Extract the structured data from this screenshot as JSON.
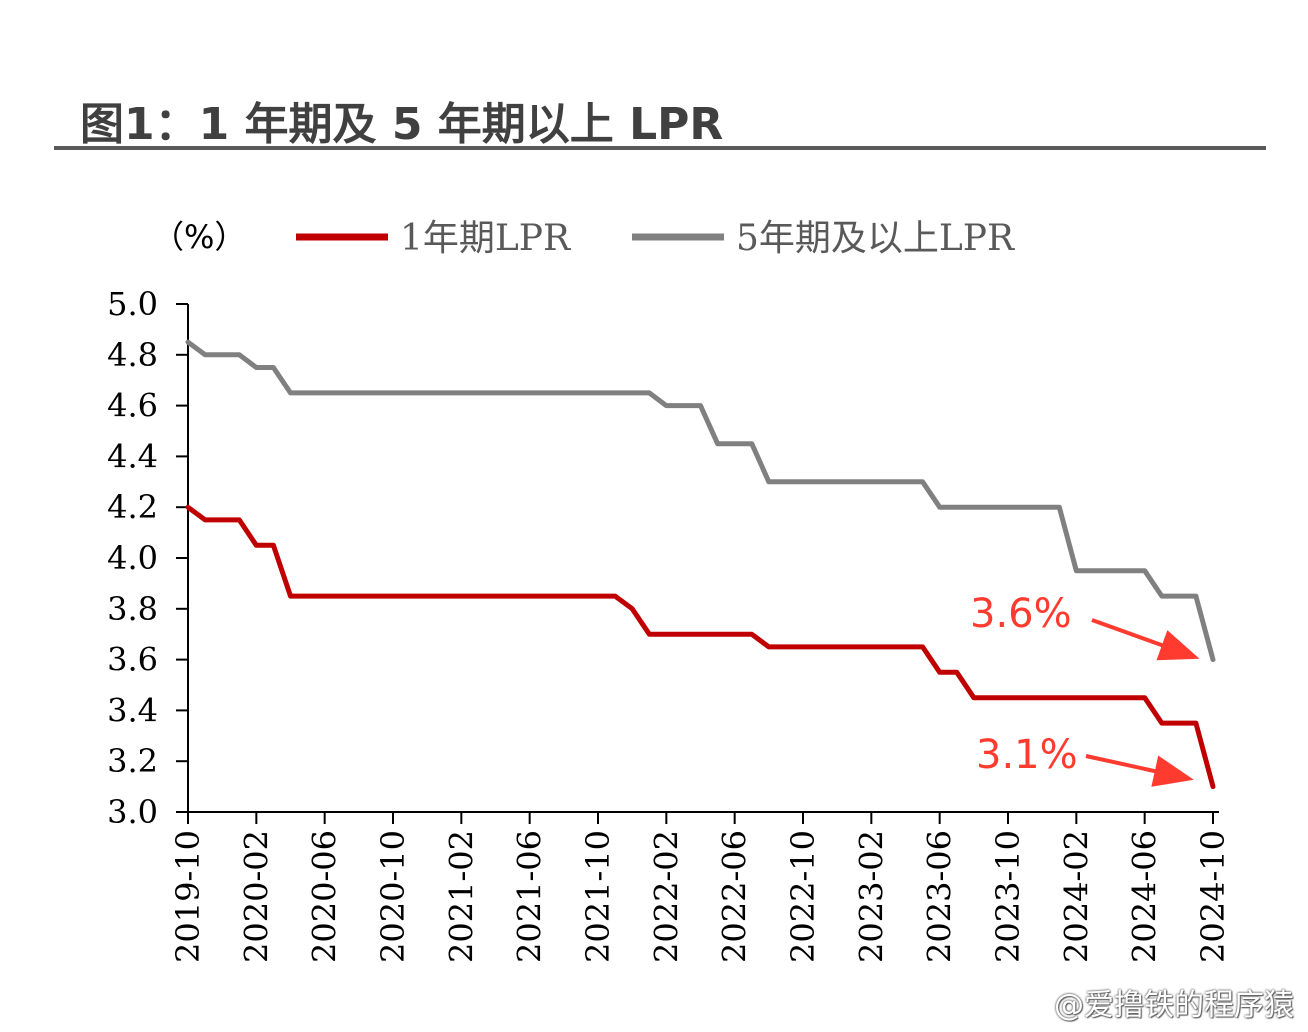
{
  "page": {
    "title": "图1：1 年期及 5 年期以上 LPR",
    "watermark": "@爱撸铁的程序猿"
  },
  "colors": {
    "one_year": "#C00000",
    "five_year": "#808080",
    "annotation": "#FF3B2F",
    "title": "#404040"
  },
  "chart_data": {
    "type": "line",
    "unit_label": "（%）",
    "ylim": [
      3.0,
      5.0
    ],
    "yticks": [
      "5.0",
      "4.8",
      "4.6",
      "4.4",
      "4.2",
      "4.0",
      "3.8",
      "3.6",
      "3.4",
      "3.2",
      "3.0"
    ],
    "xtick_labels": [
      "2019-10",
      "2020-02",
      "2020-06",
      "2020-10",
      "2021-02",
      "2021-06",
      "2021-10",
      "2022-02",
      "2022-06",
      "2022-10",
      "2023-02",
      "2023-06",
      "2023-10",
      "2024-02",
      "2024-06",
      "2024-10"
    ],
    "legend_position": "top",
    "grid": false,
    "series": [
      {
        "name": "1年期LPR",
        "color": "#C00000",
        "points": [
          [
            "2019-10",
            4.2
          ],
          [
            "2019-11",
            4.15
          ],
          [
            "2020-01",
            4.15
          ],
          [
            "2020-02",
            4.05
          ],
          [
            "2020-03",
            4.05
          ],
          [
            "2020-04",
            3.85
          ],
          [
            "2021-11",
            3.85
          ],
          [
            "2021-12",
            3.8
          ],
          [
            "2022-01",
            3.7
          ],
          [
            "2022-07",
            3.7
          ],
          [
            "2022-08",
            3.65
          ],
          [
            "2023-05",
            3.65
          ],
          [
            "2023-06",
            3.55
          ],
          [
            "2023-07",
            3.55
          ],
          [
            "2023-08",
            3.45
          ],
          [
            "2024-06",
            3.45
          ],
          [
            "2024-07",
            3.35
          ],
          [
            "2024-09",
            3.35
          ],
          [
            "2024-10",
            3.1
          ]
        ]
      },
      {
        "name": "5年期及以上LPR",
        "color": "#808080",
        "points": [
          [
            "2019-10",
            4.85
          ],
          [
            "2019-11",
            4.8
          ],
          [
            "2020-01",
            4.8
          ],
          [
            "2020-02",
            4.75
          ],
          [
            "2020-03",
            4.75
          ],
          [
            "2020-04",
            4.65
          ],
          [
            "2022-01",
            4.65
          ],
          [
            "2022-02",
            4.6
          ],
          [
            "2022-04",
            4.6
          ],
          [
            "2022-05",
            4.45
          ],
          [
            "2022-07",
            4.45
          ],
          [
            "2022-08",
            4.3
          ],
          [
            "2023-05",
            4.3
          ],
          [
            "2023-06",
            4.2
          ],
          [
            "2024-01",
            4.2
          ],
          [
            "2024-02",
            3.95
          ],
          [
            "2024-06",
            3.95
          ],
          [
            "2024-07",
            3.85
          ],
          [
            "2024-09",
            3.85
          ],
          [
            "2024-10",
            3.6
          ]
        ]
      }
    ],
    "annotations": [
      {
        "text": "3.6%",
        "series": "5年期及以上LPR",
        "value": 3.6
      },
      {
        "text": "3.1%",
        "series": "1年期LPR",
        "value": 3.1
      }
    ]
  }
}
